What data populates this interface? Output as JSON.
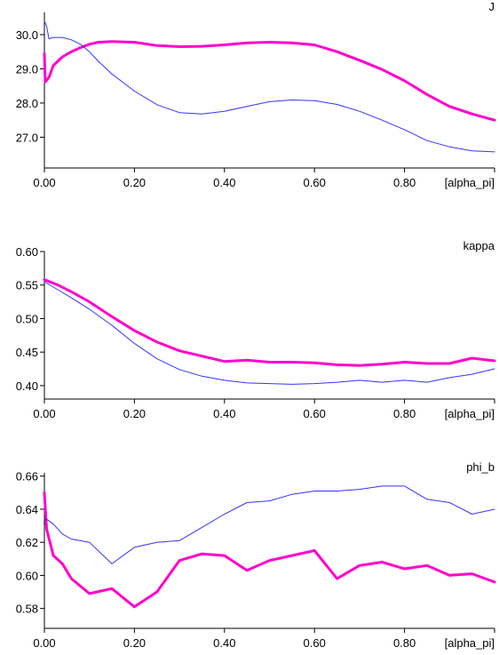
{
  "chart_data": [
    {
      "type": "line",
      "title": "J",
      "xlabel": "[alpha_pi]",
      "ylabel": "",
      "xlim": [
        0,
        1
      ],
      "ylim": [
        26.1,
        30.65
      ],
      "xticks": [
        "0.00",
        "0.20",
        "0.40",
        "0.60",
        "0.80"
      ],
      "xtick_values": [
        0.0,
        0.2,
        0.4,
        0.6,
        0.8
      ],
      "yticks": [
        "27.0",
        "28.0",
        "29.0",
        "30.0"
      ],
      "ytick_values": [
        27.0,
        28.0,
        29.0,
        30.0
      ],
      "grid": false,
      "series": [
        {
          "color": "#ff00cc",
          "width": 3,
          "points": [
            [
              0,
              29.45
            ],
            [
              0.002,
              28.62
            ],
            [
              0.01,
              28.75
            ],
            [
              0.02,
              29.1
            ],
            [
              0.04,
              29.35
            ],
            [
              0.06,
              29.5
            ],
            [
              0.08,
              29.62
            ],
            [
              0.1,
              29.72
            ],
            [
              0.12,
              29.78
            ],
            [
              0.15,
              29.8
            ],
            [
              0.2,
              29.78
            ],
            [
              0.25,
              29.68
            ],
            [
              0.3,
              29.65
            ],
            [
              0.35,
              29.66
            ],
            [
              0.4,
              29.7
            ],
            [
              0.45,
              29.76
            ],
            [
              0.5,
              29.78
            ],
            [
              0.55,
              29.76
            ],
            [
              0.6,
              29.7
            ],
            [
              0.65,
              29.5
            ],
            [
              0.7,
              29.25
            ],
            [
              0.75,
              28.98
            ],
            [
              0.8,
              28.65
            ],
            [
              0.85,
              28.25
            ],
            [
              0.9,
              27.9
            ],
            [
              0.95,
              27.68
            ],
            [
              1.0,
              27.5
            ]
          ]
        },
        {
          "color": "#3333ff",
          "width": 1,
          "points": [
            [
              0,
              30.4
            ],
            [
              0.005,
              30.25
            ],
            [
              0.01,
              29.88
            ],
            [
              0.02,
              29.92
            ],
            [
              0.04,
              29.92
            ],
            [
              0.06,
              29.85
            ],
            [
              0.08,
              29.72
            ],
            [
              0.1,
              29.5
            ],
            [
              0.12,
              29.22
            ],
            [
              0.15,
              28.85
            ],
            [
              0.2,
              28.35
            ],
            [
              0.25,
              27.95
            ],
            [
              0.3,
              27.72
            ],
            [
              0.35,
              27.68
            ],
            [
              0.4,
              27.76
            ],
            [
              0.45,
              27.9
            ],
            [
              0.5,
              28.04
            ],
            [
              0.55,
              28.09
            ],
            [
              0.6,
              28.07
            ],
            [
              0.65,
              27.96
            ],
            [
              0.7,
              27.76
            ],
            [
              0.75,
              27.5
            ],
            [
              0.8,
              27.22
            ],
            [
              0.85,
              26.9
            ],
            [
              0.9,
              26.72
            ],
            [
              0.95,
              26.6
            ],
            [
              1.0,
              26.57
            ]
          ]
        }
      ]
    },
    {
      "type": "line",
      "title": "kappa",
      "xlabel": "[alpha_pi]",
      "ylabel": "",
      "xlim": [
        0,
        1
      ],
      "ylim": [
        0.38,
        0.6
      ],
      "xticks": [
        "0.00",
        "0.20",
        "0.40",
        "0.60",
        "0.80"
      ],
      "xtick_values": [
        0.0,
        0.2,
        0.4,
        0.6,
        0.8
      ],
      "yticks": [
        "0.40",
        "0.45",
        "0.50",
        "0.55",
        "0.60"
      ],
      "ytick_values": [
        0.4,
        0.45,
        0.5,
        0.55,
        0.6
      ],
      "grid": false,
      "series": [
        {
          "color": "#ff00cc",
          "width": 3,
          "points": [
            [
              0,
              0.558
            ],
            [
              0.03,
              0.55
            ],
            [
              0.06,
              0.54
            ],
            [
              0.1,
              0.525
            ],
            [
              0.15,
              0.503
            ],
            [
              0.2,
              0.482
            ],
            [
              0.25,
              0.465
            ],
            [
              0.3,
              0.452
            ],
            [
              0.35,
              0.444
            ],
            [
              0.4,
              0.436
            ],
            [
              0.45,
              0.438
            ],
            [
              0.5,
              0.435
            ],
            [
              0.55,
              0.435
            ],
            [
              0.6,
              0.434
            ],
            [
              0.65,
              0.431
            ],
            [
              0.7,
              0.43
            ],
            [
              0.75,
              0.432
            ],
            [
              0.8,
              0.435
            ],
            [
              0.85,
              0.433
            ],
            [
              0.9,
              0.433
            ],
            [
              0.95,
              0.441
            ],
            [
              1.0,
              0.437
            ]
          ]
        },
        {
          "color": "#3333ff",
          "width": 1,
          "points": [
            [
              0,
              0.555
            ],
            [
              0.03,
              0.543
            ],
            [
              0.06,
              0.531
            ],
            [
              0.1,
              0.514
            ],
            [
              0.15,
              0.49
            ],
            [
              0.2,
              0.463
            ],
            [
              0.25,
              0.44
            ],
            [
              0.3,
              0.424
            ],
            [
              0.35,
              0.414
            ],
            [
              0.4,
              0.408
            ],
            [
              0.45,
              0.404
            ],
            [
              0.5,
              0.403
            ],
            [
              0.55,
              0.402
            ],
            [
              0.6,
              0.403
            ],
            [
              0.65,
              0.405
            ],
            [
              0.7,
              0.408
            ],
            [
              0.75,
              0.405
            ],
            [
              0.8,
              0.408
            ],
            [
              0.85,
              0.405
            ],
            [
              0.9,
              0.412
            ],
            [
              0.95,
              0.417
            ],
            [
              1.0,
              0.425
            ]
          ]
        }
      ]
    },
    {
      "type": "line",
      "title": "phi_b",
      "xlabel": "[alpha_pi]",
      "ylabel": "",
      "xlim": [
        0,
        1
      ],
      "ylim": [
        0.568,
        0.662
      ],
      "xticks": [
        "0.00",
        "0.20",
        "0.40",
        "0.60",
        "0.80"
      ],
      "xtick_values": [
        0.0,
        0.2,
        0.4,
        0.6,
        0.8
      ],
      "yticks": [
        "0.58",
        "0.60",
        "0.62",
        "0.64",
        "0.66"
      ],
      "ytick_values": [
        0.58,
        0.6,
        0.62,
        0.64,
        0.66
      ],
      "grid": false,
      "series": [
        {
          "color": "#ff00cc",
          "width": 3,
          "points": [
            [
              0,
              0.65
            ],
            [
              0.005,
              0.628
            ],
            [
              0.02,
              0.612
            ],
            [
              0.04,
              0.607
            ],
            [
              0.06,
              0.598
            ],
            [
              0.1,
              0.589
            ],
            [
              0.15,
              0.592
            ],
            [
              0.2,
              0.581
            ],
            [
              0.25,
              0.59
            ],
            [
              0.3,
              0.609
            ],
            [
              0.35,
              0.613
            ],
            [
              0.4,
              0.612
            ],
            [
              0.45,
              0.603
            ],
            [
              0.5,
              0.609
            ],
            [
              0.55,
              0.612
            ],
            [
              0.6,
              0.615
            ],
            [
              0.65,
              0.598
            ],
            [
              0.7,
              0.606
            ],
            [
              0.75,
              0.608
            ],
            [
              0.8,
              0.604
            ],
            [
              0.85,
              0.606
            ],
            [
              0.9,
              0.6
            ],
            [
              0.95,
              0.601
            ],
            [
              1.0,
              0.596
            ]
          ]
        },
        {
          "color": "#3333ff",
          "width": 1,
          "points": [
            [
              0,
              0.635
            ],
            [
              0.02,
              0.631
            ],
            [
              0.04,
              0.625
            ],
            [
              0.06,
              0.622
            ],
            [
              0.1,
              0.62
            ],
            [
              0.15,
              0.607
            ],
            [
              0.2,
              0.617
            ],
            [
              0.25,
              0.62
            ],
            [
              0.3,
              0.621
            ],
            [
              0.35,
              0.629
            ],
            [
              0.4,
              0.637
            ],
            [
              0.45,
              0.644
            ],
            [
              0.5,
              0.645
            ],
            [
              0.55,
              0.649
            ],
            [
              0.6,
              0.651
            ],
            [
              0.65,
              0.651
            ],
            [
              0.7,
              0.652
            ],
            [
              0.75,
              0.654
            ],
            [
              0.8,
              0.654
            ],
            [
              0.85,
              0.646
            ],
            [
              0.9,
              0.644
            ],
            [
              0.95,
              0.637
            ],
            [
              1.0,
              0.64
            ]
          ]
        }
      ]
    }
  ]
}
